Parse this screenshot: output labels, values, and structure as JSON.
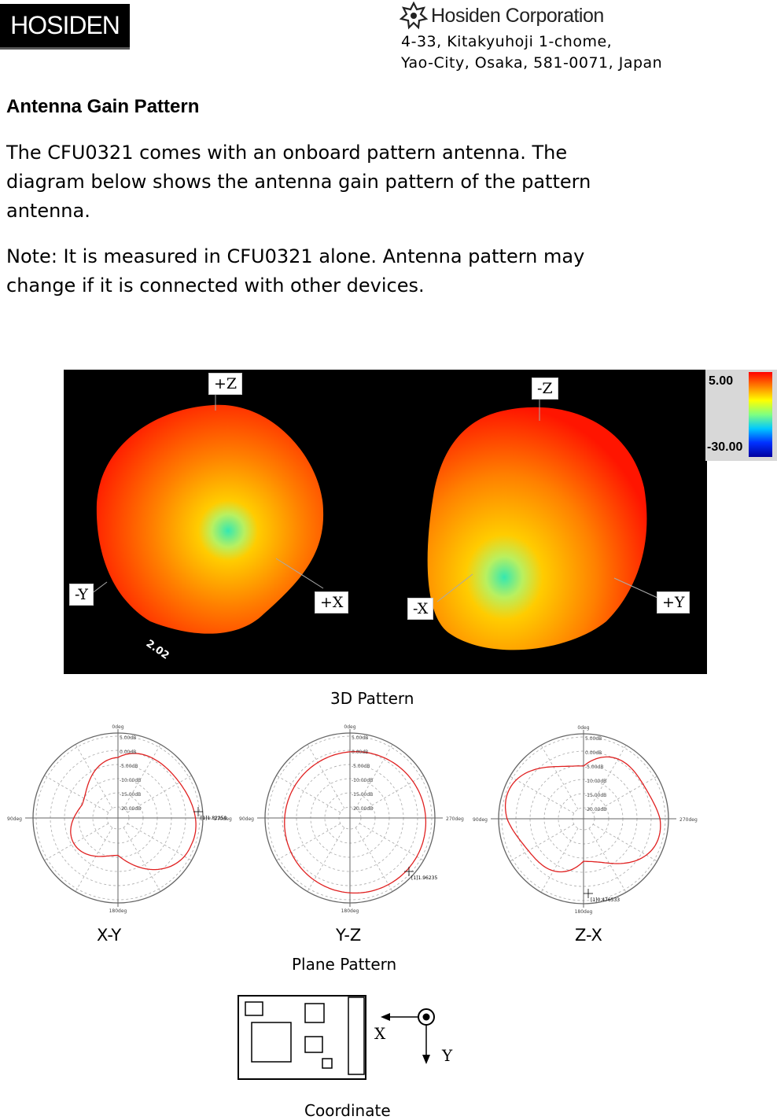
{
  "header": {
    "logo_text": "HOSIDEN",
    "company": "Hosiden Corporation",
    "address_line1": "4-33, Kitakyuhoji 1-chome,",
    "address_line2": "Yao-City, Osaka, 581-0071, Japan"
  },
  "section": {
    "title": "Antenna Gain Pattern",
    "paragraph1_line1": "The CFU0321 comes with an onboard pattern antenna. The",
    "paragraph1_line2": "diagram below shows the antenna gain pattern of the pattern",
    "paragraph1_line3": "antenna.",
    "paragraph2_line1": "Note: It is measured in CFU0321 alone. Antenna pattern may",
    "paragraph2_line2": "change if it is connected with other devices."
  },
  "pattern3d": {
    "caption": "3D Pattern",
    "left_labels": {
      "top": "+Z",
      "left": "-Y",
      "right": "+X",
      "edge": "2.02"
    },
    "right_labels": {
      "top": "-Z",
      "left": "-X",
      "right": "+Y"
    },
    "scale_max": "5.00",
    "scale_min": "-30.00",
    "colors": {
      "background": "#000000",
      "hot": "#ff1a00",
      "warm": "#ff8a00",
      "cool": "#2fe0a0"
    }
  },
  "plane": {
    "caption": "Plane Pattern",
    "rings": [
      "5.00dB",
      "0.00dB",
      "-5.00dB",
      "-10.00dB",
      "-15.00dB",
      "-20.00dB"
    ],
    "angles": {
      "top": "0deg",
      "left": "90deg",
      "right": "270deg",
      "bottom": "180deg"
    },
    "plots": [
      {
        "label": "X-Y",
        "marker": "[1]1.82250"
      },
      {
        "label": "Y-Z",
        "marker": "[1]1.96235"
      },
      {
        "label": "Z-X",
        "marker": "[1]0.476533"
      }
    ]
  },
  "coordinate": {
    "caption": "Coordinate",
    "x_label": "X",
    "y_label": "Y"
  }
}
